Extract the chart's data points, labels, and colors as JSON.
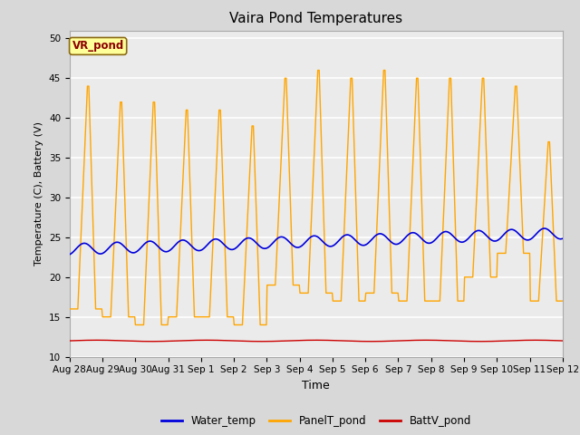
{
  "title": "Vaira Pond Temperatures",
  "xlabel": "Time",
  "ylabel": "Temperature (C), Battery (V)",
  "site_label": "VR_pond",
  "ylim": [
    10,
    51
  ],
  "yticks": [
    10,
    15,
    20,
    25,
    30,
    35,
    40,
    45,
    50
  ],
  "x_tick_labels": [
    "Aug 28",
    "Aug 29",
    "Aug 30",
    "Aug 31",
    "Sep 1",
    "Sep 2",
    "Sep 3",
    "Sep 4",
    "Sep 5",
    "Sep 6",
    "Sep 7",
    "Sep 8",
    "Sep 9",
    "Sep 10",
    "Sep 11",
    "Sep 12"
  ],
  "water_color": "#0000dd",
  "panel_color": "#ffa500",
  "batt_color": "#cc0000",
  "bg_color": "#d8d8d8",
  "plot_bg_color": "#ebebeb",
  "legend_labels": [
    "Water_temp",
    "PanelT_pond",
    "BattV_pond"
  ],
  "panel_min": [
    16,
    15,
    14,
    15,
    15,
    14,
    19,
    18,
    17,
    18,
    17,
    17,
    20,
    23,
    17
  ],
  "panel_max": [
    44,
    42,
    42,
    41,
    41,
    39,
    45,
    46,
    45,
    46,
    45,
    45,
    45,
    44,
    37
  ]
}
